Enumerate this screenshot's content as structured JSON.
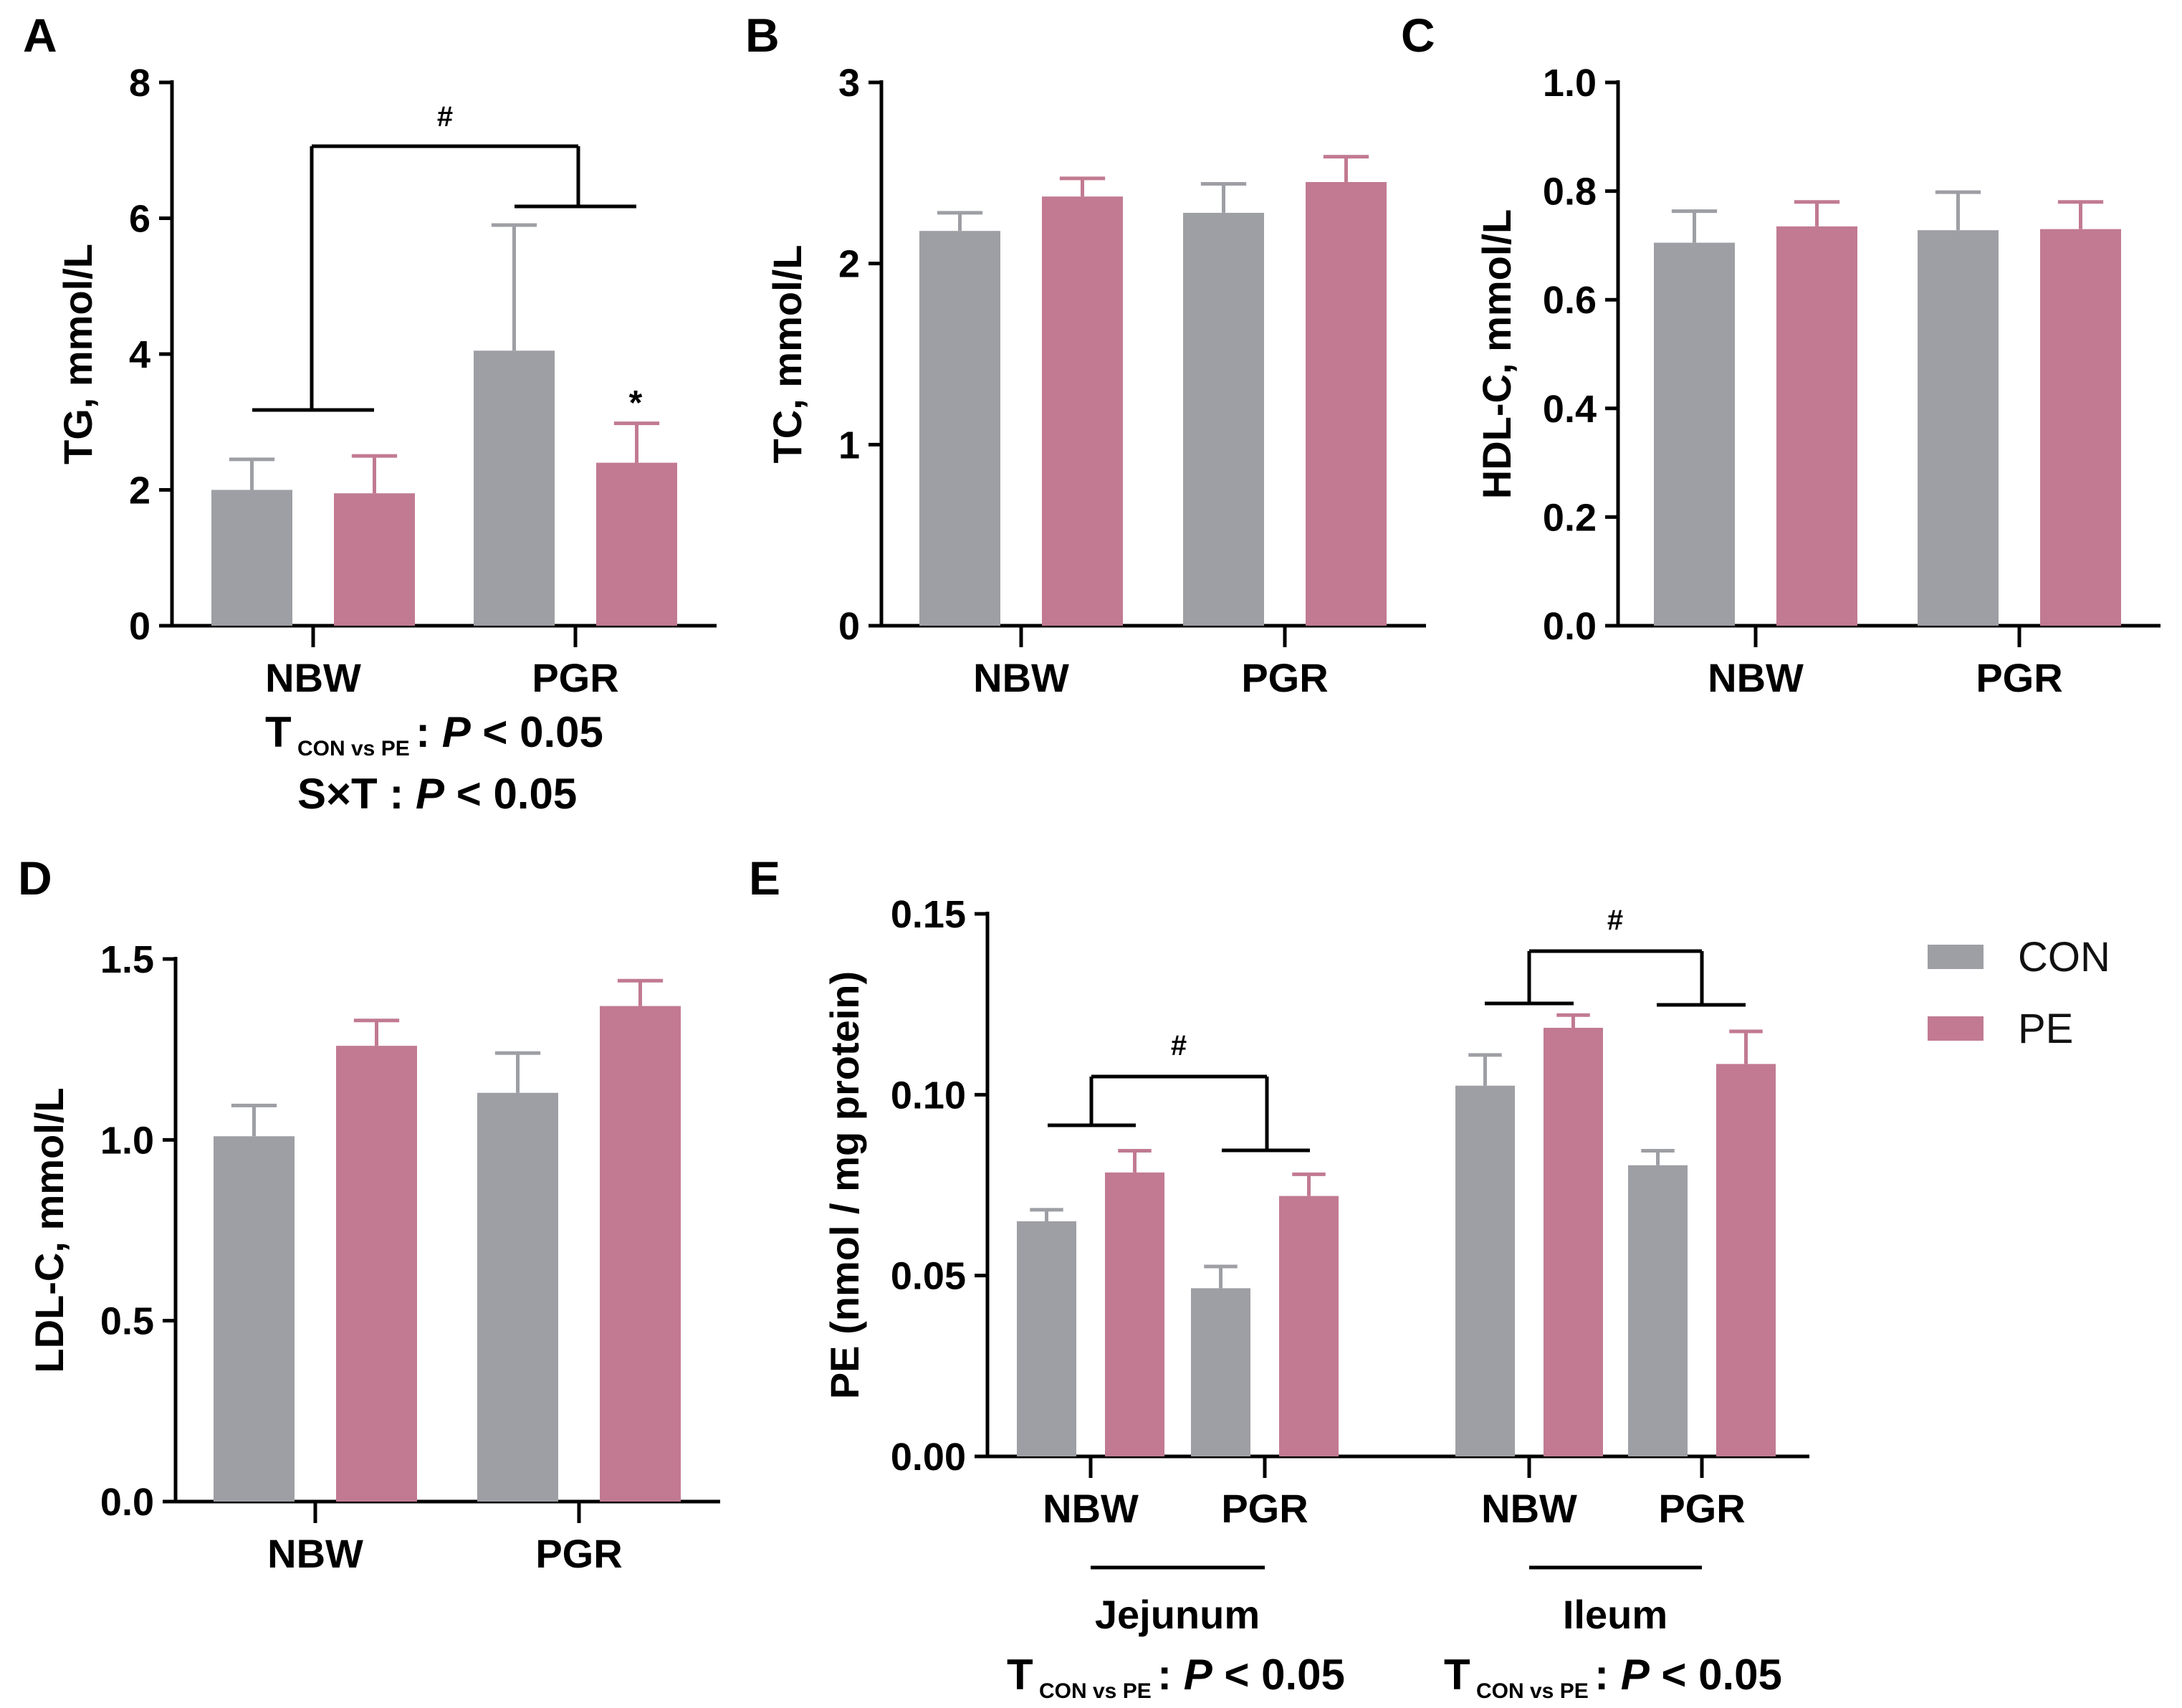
{
  "colors": {
    "CON": "#9e9fa4",
    "PE": "#c17a91"
  },
  "legend": [
    {
      "label": "CON",
      "color_key": "CON"
    },
    {
      "label": "PE",
      "color_key": "PE"
    }
  ],
  "labels": {
    "tcon": "T",
    "sub": "CON vs PE",
    "colon": ":",
    "p": "P",
    "lt": "< 0.05",
    "sxt": "S×T",
    "hash": "#",
    "star": "*"
  },
  "chart_data": [
    {
      "panel": "A",
      "type": "bar",
      "ylabel": "TG, mmol/L",
      "ylim": [
        0,
        8
      ],
      "yticks": [
        "0",
        "2",
        "4",
        "6",
        "8"
      ],
      "categories": [
        "NBW",
        "PGR"
      ],
      "series": [
        {
          "name": "CON",
          "values": [
            2.0,
            4.05
          ],
          "errors": [
            0.45,
            1.85
          ]
        },
        {
          "name": "PE",
          "values": [
            1.95,
            2.4
          ],
          "errors": [
            0.55,
            0.58
          ]
        }
      ],
      "annotations": [
        "#",
        "*"
      ],
      "footnotes": [
        "T CON vs PE : P < 0.05",
        "S×T : P < 0.05"
      ]
    },
    {
      "panel": "B",
      "type": "bar",
      "ylabel": "TC, mmol/L",
      "ylim": [
        0,
        3
      ],
      "yticks": [
        "0",
        "1",
        "2",
        "3"
      ],
      "categories": [
        "NBW",
        "PGR"
      ],
      "series": [
        {
          "name": "CON",
          "values": [
            2.18,
            2.28
          ],
          "errors": [
            0.1,
            0.16
          ]
        },
        {
          "name": "PE",
          "values": [
            2.37,
            2.45
          ],
          "errors": [
            0.1,
            0.14
          ]
        }
      ]
    },
    {
      "panel": "C",
      "type": "bar",
      "ylabel": "HDL-C, mmol/L",
      "ylim": [
        0,
        1.0
      ],
      "yticks": [
        "0.0",
        "0.2",
        "0.4",
        "0.6",
        "0.8",
        "1.0"
      ],
      "categories": [
        "NBW",
        "PGR"
      ],
      "series": [
        {
          "name": "CON",
          "values": [
            0.705,
            0.728
          ],
          "errors": [
            0.058,
            0.07
          ]
        },
        {
          "name": "PE",
          "values": [
            0.735,
            0.73
          ],
          "errors": [
            0.045,
            0.05
          ]
        }
      ]
    },
    {
      "panel": "D",
      "type": "bar",
      "ylabel": "LDL-C, mmol/L",
      "ylim": [
        0,
        1.5
      ],
      "yticks": [
        "0.0",
        "0.5",
        "1.0",
        "1.5"
      ],
      "categories": [
        "NBW",
        "PGR"
      ],
      "series": [
        {
          "name": "CON",
          "values": [
            1.01,
            1.13
          ],
          "errors": [
            0.085,
            0.11
          ]
        },
        {
          "name": "PE",
          "values": [
            1.26,
            1.37
          ],
          "errors": [
            0.07,
            0.07
          ]
        }
      ]
    },
    {
      "panel": "E",
      "type": "bar",
      "ylabel": "PE (nmol / mg protein)",
      "ylim": [
        0,
        0.15
      ],
      "yticks": [
        "0.00",
        "0.05",
        "0.10",
        "0.15"
      ],
      "groups": [
        {
          "name": "Jejunum",
          "categories": [
            "NBW",
            "PGR"
          ],
          "series": [
            {
              "name": "CON",
              "values": [
                0.065,
                0.0465
              ],
              "errors": [
                0.0032,
                0.006
              ]
            },
            {
              "name": "PE",
              "values": [
                0.0785,
                0.072
              ],
              "errors": [
                0.006,
                0.006
              ]
            }
          ],
          "footnote": "T CON vs PE : P < 0.05"
        },
        {
          "name": "Ileum",
          "categories": [
            "NBW",
            "PGR"
          ],
          "series": [
            {
              "name": "CON",
              "values": [
                0.1025,
                0.0805
              ],
              "errors": [
                0.0085,
                0.004
              ]
            },
            {
              "name": "PE",
              "values": [
                0.1185,
                0.1085
              ],
              "errors": [
                0.0035,
                0.009
              ]
            }
          ],
          "footnote": "T CON vs PE : P < 0.05"
        }
      ],
      "annotations": [
        "#",
        "#"
      ],
      "legend": "right"
    }
  ]
}
